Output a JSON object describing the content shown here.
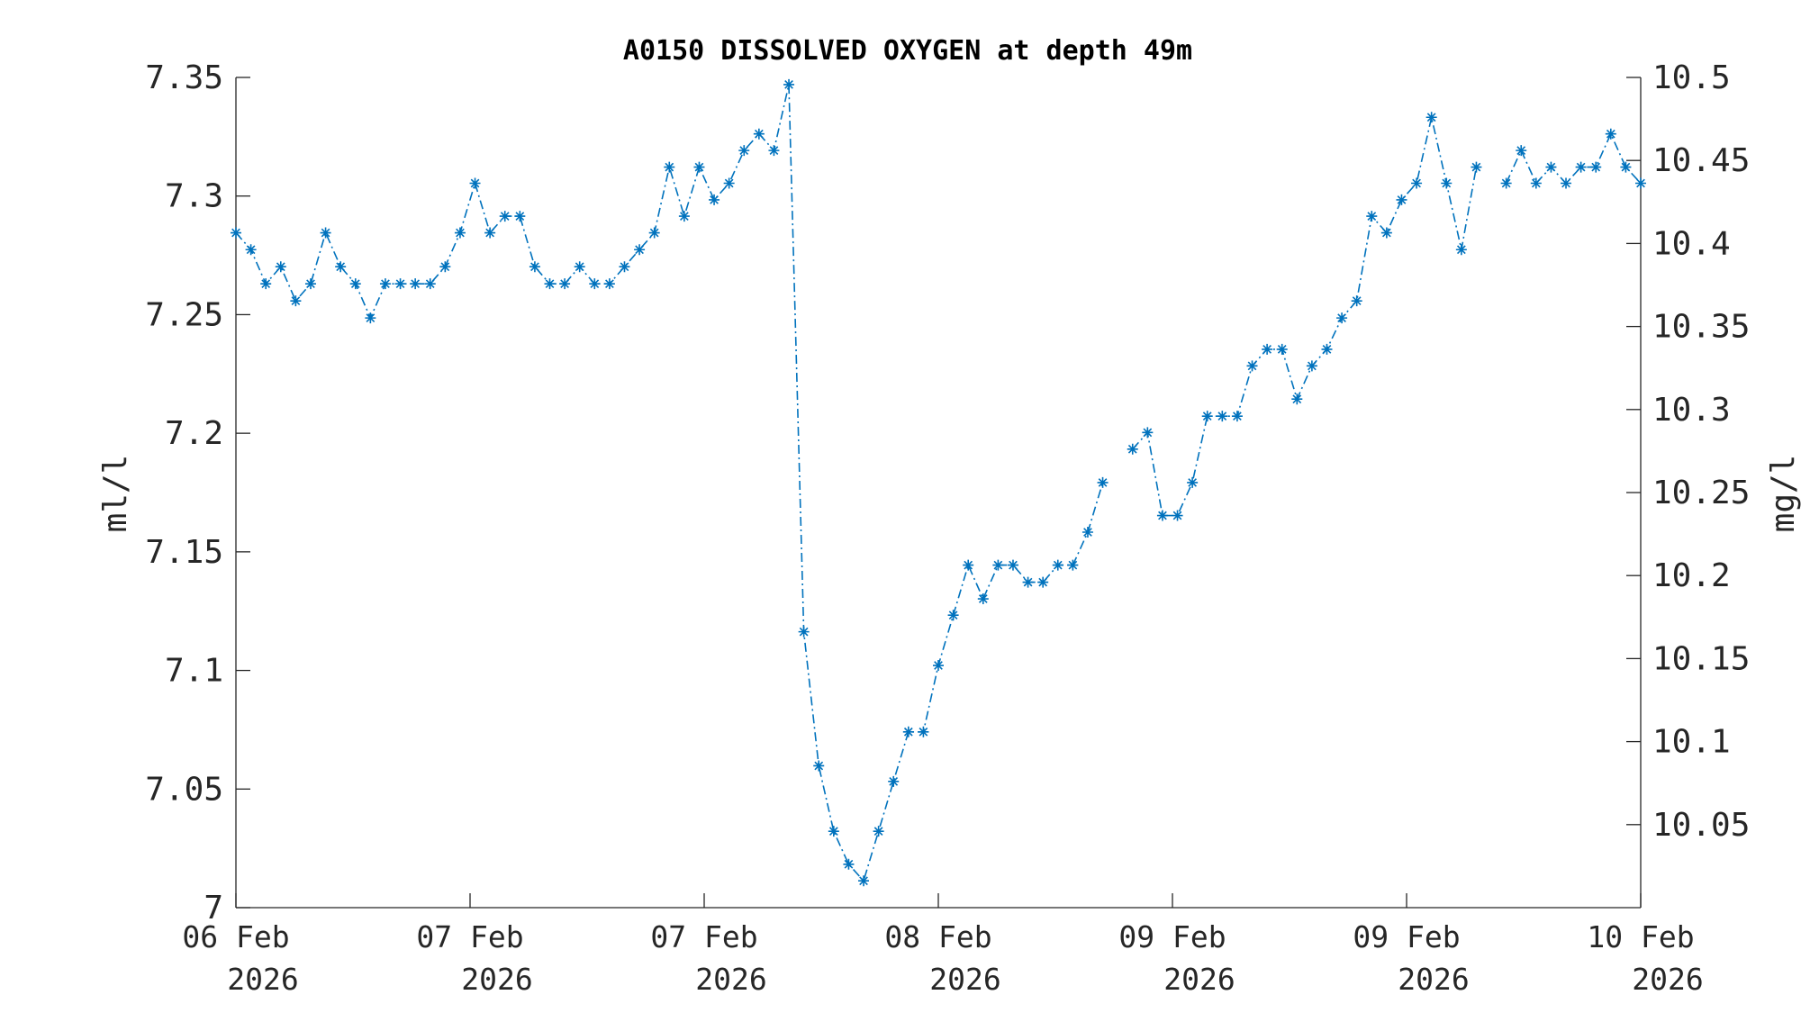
{
  "chart_data": {
    "type": "line",
    "title": "A0150 DISSOLVED OXYGEN at depth 49m",
    "ylabel_left": "ml/l",
    "ylabel_right": "mg/l",
    "ylim_left": [
      7.0,
      7.35
    ],
    "ylim_right": [
      10.0,
      10.5
    ],
    "yticks_left": [
      "7",
      "7.05",
      "7.1",
      "7.15",
      "7.2",
      "7.25",
      "7.3",
      "7.35"
    ],
    "yticks_right": [
      "10.05",
      "10.1",
      "10.15",
      "10.2",
      "10.25",
      "10.3",
      "10.35",
      "10.4",
      "10.45",
      "10.5"
    ],
    "xticks": [
      {
        "line1": "06 Feb",
        "line2": "2026"
      },
      {
        "line1": "07 Feb",
        "line2": "2026"
      },
      {
        "line1": "07 Feb",
        "line2": "2026"
      },
      {
        "line1": "08 Feb",
        "line2": "2026"
      },
      {
        "line1": "09 Feb",
        "line2": "2026"
      },
      {
        "line1": "09 Feb",
        "line2": "2026"
      },
      {
        "line1": "10 Feb",
        "line2": "2026"
      }
    ],
    "grid": false,
    "series": [
      {
        "color": "#0072BD",
        "marker": "asterisk",
        "linestyle": "dash-dot",
        "values": [
          7.2845,
          7.2774,
          7.263,
          7.2702,
          7.2558,
          7.263,
          7.2845,
          7.2702,
          7.263,
          7.2486,
          7.263,
          7.263,
          7.263,
          7.263,
          7.2702,
          7.2845,
          7.3054,
          7.2845,
          7.2915,
          7.2915,
          7.2702,
          7.263,
          7.263,
          7.2702,
          7.263,
          7.263,
          7.2702,
          7.2774,
          7.2845,
          7.3122,
          7.2915,
          7.3122,
          7.2984,
          7.3054,
          7.3192,
          7.3262,
          7.3192,
          7.347,
          7.1163,
          7.0598,
          7.0322,
          7.0183,
          7.0113,
          7.0322,
          7.0532,
          7.0741,
          7.0741,
          7.1021,
          7.1233,
          7.1444,
          7.1302,
          7.1444,
          7.1444,
          7.1372,
          7.1372,
          7.1444,
          7.1444,
          7.1583,
          7.1792,
          null,
          7.1933,
          7.2003,
          7.1653,
          7.1653,
          7.1792,
          7.2072,
          7.2072,
          7.2072,
          7.2284,
          7.2354,
          7.2354,
          7.2144,
          7.2284,
          7.2354,
          7.2486,
          7.2558,
          7.2915,
          7.2845,
          7.2984,
          7.3054,
          7.3332,
          7.3054,
          7.2774,
          7.3122,
          null,
          7.3054,
          7.3192,
          7.3054,
          7.3122,
          7.3054,
          7.3122,
          7.3122,
          7.3262,
          7.3122,
          7.3054
        ]
      }
    ]
  }
}
